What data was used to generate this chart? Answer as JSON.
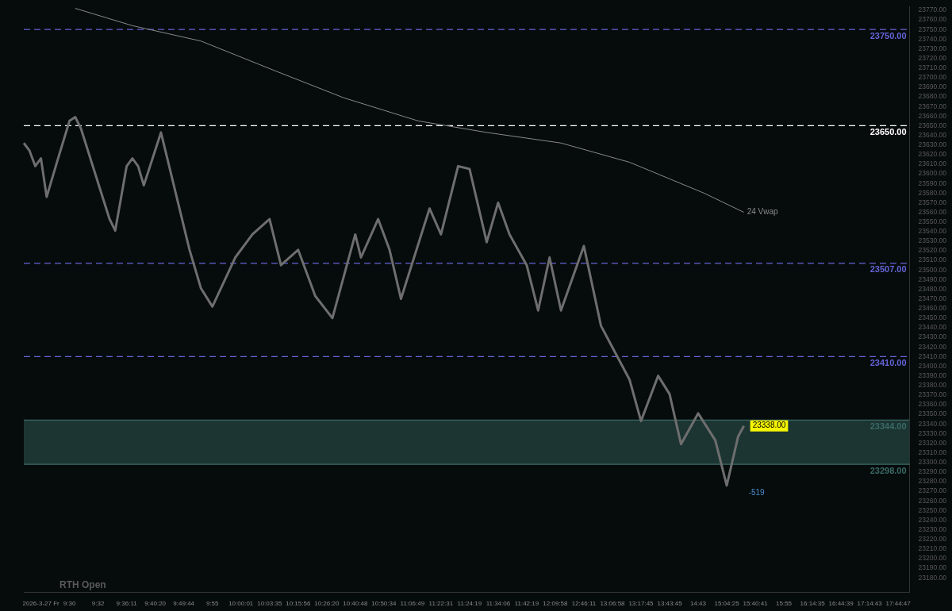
{
  "chart_data": {
    "type": "line",
    "categories": [
      null,
      null,
      null,
      "2026-3-27 Fr",
      null,
      null,
      null,
      null,
      "9:30",
      null,
      null,
      null,
      null,
      "9:32",
      null,
      null,
      null,
      null,
      "9:36:11",
      null,
      null,
      null,
      null,
      "9:40:20",
      null,
      null,
      null,
      null,
      "9:49:44",
      null,
      null,
      null,
      null,
      "9:55",
      null,
      null,
      null,
      null,
      "10:00:01",
      null,
      null,
      null,
      null,
      "10:03:35",
      null,
      null,
      null,
      null,
      "10:15:56",
      null,
      null,
      null,
      null,
      "10:26:20",
      null,
      null,
      null,
      null,
      "10:40:48",
      null,
      null,
      null,
      null,
      "10:50:34",
      null,
      null,
      null,
      null,
      "11:06:49",
      null,
      null,
      null,
      null,
      "11:22:31",
      null,
      null,
      null,
      null,
      "11:24:19",
      null,
      null,
      null,
      null,
      "11:34:06",
      null,
      null,
      null,
      null,
      "11:42:19",
      null,
      null,
      null,
      null,
      "12:09:58",
      null,
      null,
      null,
      null,
      "12:46:11",
      null,
      null,
      null,
      null,
      "13:06:58",
      null,
      null,
      null,
      null,
      "13:17:45",
      null,
      null,
      null,
      null,
      "13:43:45",
      null,
      null,
      null,
      null,
      "14:43",
      null,
      null,
      null,
      null,
      "15:04:25",
      null,
      null,
      null,
      null,
      "15:40:41",
      null,
      null,
      null,
      null,
      "15:55",
      null,
      null,
      null,
      null,
      "16:14:35",
      null,
      null,
      null,
      null,
      "16:44:39",
      null,
      null,
      null,
      null,
      "17:14:43",
      null,
      null,
      null,
      null,
      "17:44:47",
      null,
      null
    ],
    "series": [
      {
        "color": "#6e6e6e",
        "values": [
          23632,
          23624,
          23608,
          23616,
          23576,
          null,
          23616,
          null,
          23655,
          23659,
          23647,
          null,
          null,
          null,
          null,
          23553,
          23541,
          null,
          23608,
          23616,
          23608,
          23588,
          null,
          null,
          23643,
          null,
          null,
          null,
          null,
          23521,
          null,
          23481,
          null,
          23462,
          null,
          null,
          null,
          23513,
          null,
          null,
          23537,
          null,
          null,
          23553,
          null,
          23505,
          null,
          null,
          23521,
          null,
          null,
          23473,
          null,
          null,
          23450,
          null,
          null,
          null,
          23537,
          23513,
          null,
          null,
          23553,
          null,
          23521,
          null,
          23470,
          null,
          null,
          null,
          null,
          23564,
          null,
          23537,
          null,
          null,
          23608,
          null,
          23605,
          null,
          null,
          23529,
          null,
          23570,
          null,
          23537,
          null,
          null,
          23505,
          null,
          23458,
          null,
          23513,
          null,
          23458,
          null,
          null,
          null,
          23525,
          null,
          null,
          23442,
          null,
          null,
          null,
          null,
          23386,
          null,
          23343,
          null,
          null,
          23390,
          null,
          23371,
          null,
          23319,
          null,
          null,
          23351,
          null,
          null,
          23323,
          null,
          23276,
          null,
          23327,
          23338,
          null,
          null,
          null,
          null,
          null,
          null,
          null,
          null,
          null,
          null,
          null,
          null,
          null,
          null,
          null,
          null,
          null,
          null,
          null,
          null,
          null,
          null,
          null,
          null,
          null,
          null,
          null,
          null,
          null
        ]
      },
      {
        "name": "24 Vwap",
        "color": "#8a8a8a",
        "values": [
          null,
          null,
          null,
          null,
          null,
          null,
          null,
          null,
          null,
          23772,
          null,
          null,
          null,
          null,
          null,
          null,
          null,
          null,
          null,
          23754,
          null,
          null,
          null,
          null,
          null,
          null,
          null,
          null,
          null,
          null,
          null,
          23738,
          null,
          null,
          null,
          null,
          null,
          null,
          null,
          null,
          null,
          null,
          null,
          null,
          23707,
          null,
          null,
          null,
          null,
          null,
          null,
          null,
          null,
          null,
          null,
          null,
          23679,
          null,
          null,
          null,
          null,
          null,
          null,
          null,
          null,
          null,
          null,
          null,
          null,
          23655,
          null,
          null,
          null,
          null,
          null,
          null,
          null,
          null,
          null,
          null,
          null,
          23643,
          null,
          null,
          null,
          null,
          null,
          null,
          null,
          null,
          null,
          null,
          null,
          null,
          23632,
          null,
          null,
          null,
          null,
          null,
          null,
          null,
          null,
          null,
          null,
          null,
          23612,
          null,
          null,
          null,
          null,
          null,
          null,
          null,
          null,
          null,
          null,
          null,
          null,
          23580,
          null,
          null,
          null,
          null,
          null,
          null,
          23560,
          null,
          null,
          null,
          null,
          null,
          null,
          null,
          null,
          null,
          null,
          null,
          null,
          null,
          null,
          null,
          null,
          null,
          null,
          null,
          null,
          null,
          null,
          null,
          null,
          null,
          null,
          null,
          null,
          null
        ]
      }
    ],
    "ylim": [
      23165,
      23774
    ],
    "yticks": [
      {
        "value": 23180,
        "label": "23180.00"
      },
      {
        "value": 23190,
        "label": "23190.00"
      },
      {
        "value": 23200,
        "label": "23200.00"
      },
      {
        "value": 23210,
        "label": "23210.00"
      },
      {
        "value": 23220,
        "label": "23220.00"
      },
      {
        "value": 23230,
        "label": "23230.00"
      },
      {
        "value": 23240,
        "label": "23240.00"
      },
      {
        "value": 23250,
        "label": "23250.00"
      },
      {
        "value": 23260,
        "label": "23260.00"
      },
      {
        "value": 23270,
        "label": "23270.00"
      },
      {
        "value": 23280,
        "label": "23280.00"
      },
      {
        "value": 23290,
        "label": "23290.00"
      },
      {
        "value": 23300,
        "label": "23300.00"
      },
      {
        "value": 23310,
        "label": "23310.00"
      },
      {
        "value": 23320,
        "label": "23320.00"
      },
      {
        "value": 23330,
        "label": "23330.00"
      },
      {
        "value": 23340,
        "label": "23340.00"
      },
      {
        "value": 23350,
        "label": "23350.00"
      },
      {
        "value": 23360,
        "label": "23360.00"
      },
      {
        "value": 23370,
        "label": "23370.00"
      },
      {
        "value": 23380,
        "label": "23380.00"
      },
      {
        "value": 23390,
        "label": "23390.00"
      },
      {
        "value": 23400,
        "label": "23400.00"
      },
      {
        "value": 23410,
        "label": "23410.00"
      },
      {
        "value": 23420,
        "label": "23420.00"
      },
      {
        "value": 23430,
        "label": "23430.00"
      },
      {
        "value": 23440,
        "label": "23440.00"
      },
      {
        "value": 23450,
        "label": "23450.00"
      },
      {
        "value": 23460,
        "label": "23460.00"
      },
      {
        "value": 23470,
        "label": "23470.00"
      },
      {
        "value": 23480,
        "label": "23480.00"
      },
      {
        "value": 23490,
        "label": "23490.00"
      },
      {
        "value": 23500,
        "label": "23500.00"
      },
      {
        "value": 23510,
        "label": "23510.00"
      },
      {
        "value": 23520,
        "label": "23520.00"
      },
      {
        "value": 23530,
        "label": "23530.00"
      },
      {
        "value": 23540,
        "label": "23540.00"
      },
      {
        "value": 23550,
        "label": "23550.00"
      },
      {
        "value": 23560,
        "label": "23560.00"
      },
      {
        "value": 23570,
        "label": "23570.00"
      },
      {
        "value": 23580,
        "label": "23580.00"
      },
      {
        "value": 23590,
        "label": "23590.00"
      },
      {
        "value": 23600,
        "label": "23600.00"
      },
      {
        "value": 23610,
        "label": "23610.00"
      },
      {
        "value": 23620,
        "label": "23620.00"
      },
      {
        "value": 23630,
        "label": "23630.00"
      },
      {
        "value": 23640,
        "label": "23640.00"
      },
      {
        "value": 23650,
        "label": "23650.00"
      },
      {
        "value": 23660,
        "label": "23660.00"
      },
      {
        "value": 23670,
        "label": "23670.00"
      },
      {
        "value": 23680,
        "label": "23680.00"
      },
      {
        "value": 23690,
        "label": "23690.00"
      },
      {
        "value": 23700,
        "label": "23700.00"
      },
      {
        "value": 23710,
        "label": "23710.00"
      },
      {
        "value": 23720,
        "label": "23720.00"
      },
      {
        "value": 23730,
        "label": "23730.00"
      },
      {
        "value": 23740,
        "label": "23740.00"
      },
      {
        "value": 23750,
        "label": "23750.00"
      },
      {
        "value": 23760,
        "label": "23760.00"
      },
      {
        "value": 23770,
        "label": "23770.00"
      }
    ],
    "ref_lines": [
      {
        "axis": "y",
        "value": 23750,
        "label": "23750.00",
        "color": "#6464d8",
        "line_style": "dashed"
      },
      {
        "axis": "y",
        "value": 23650,
        "label": "23650.00",
        "color": "#ffffff",
        "line_style": "dashed"
      },
      {
        "axis": "y",
        "value": 23507,
        "label": "23507.00",
        "color": "#6464d8",
        "line_style": "dashed"
      },
      {
        "axis": "y",
        "value": 23410,
        "label": "23410.00",
        "color": "#6464d8",
        "line_style": "dashed"
      },
      {
        "axis": "y",
        "value": 23344,
        "label": "23344.00",
        "color": "#3a6a66",
        "line_style": "solid"
      },
      {
        "axis": "y",
        "value": 23298,
        "label": "23298.00",
        "color": "#3a6a66",
        "line_style": "solid"
      }
    ],
    "bands": [
      {
        "axis": "y",
        "from": 23298,
        "to": 23344,
        "color": "#1c3533"
      }
    ],
    "annotations": [
      "RTH Open",
      "23338.00",
      "-519"
    ],
    "legend": false,
    "marker": "none",
    "line_style": "solid"
  }
}
